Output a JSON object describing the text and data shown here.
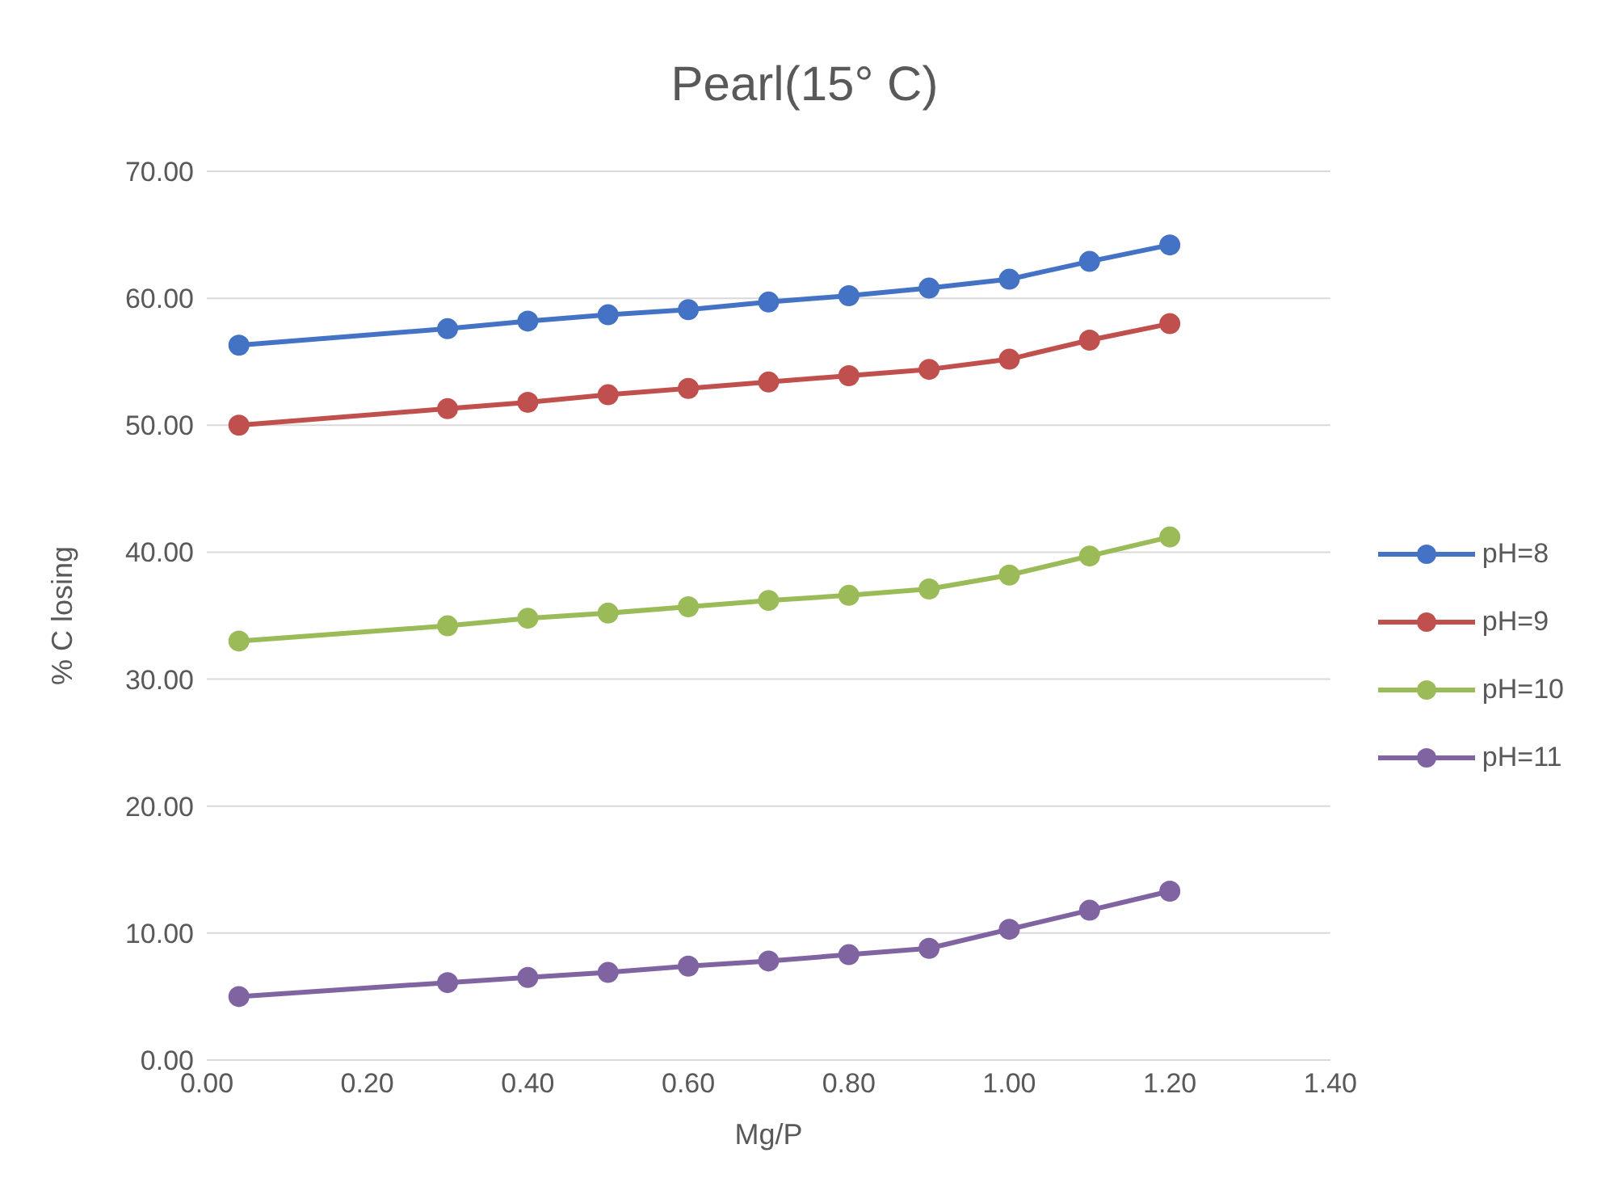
{
  "chart_data": {
    "type": "line",
    "title": "Pearl(15° C)",
    "xlabel": "Mg/P",
    "ylabel": "% C losing",
    "x": [
      0.04,
      0.3,
      0.4,
      0.5,
      0.6,
      0.7,
      0.8,
      0.9,
      1.0,
      1.1,
      1.2
    ],
    "series": [
      {
        "name": "pH=8",
        "color": "#4472c4",
        "values": [
          56.3,
          57.6,
          58.2,
          58.7,
          59.1,
          59.7,
          60.2,
          60.8,
          61.5,
          62.9,
          64.2
        ]
      },
      {
        "name": "pH=9",
        "color": "#c0504d",
        "values": [
          50.0,
          51.3,
          51.8,
          52.4,
          52.9,
          53.4,
          53.9,
          54.4,
          55.2,
          56.7,
          58.0
        ]
      },
      {
        "name": "pH=10",
        "color": "#9bbb59",
        "values": [
          33.0,
          34.2,
          34.8,
          35.2,
          35.7,
          36.2,
          36.6,
          37.1,
          38.2,
          39.7,
          41.2
        ]
      },
      {
        "name": "pH=11",
        "color": "#8064a2",
        "values": [
          5.0,
          6.1,
          6.5,
          6.9,
          7.4,
          7.8,
          8.3,
          8.8,
          10.3,
          11.8,
          13.3
        ]
      }
    ],
    "xlim": [
      0,
      1.4
    ],
    "xticks": [
      {
        "value": 0,
        "label": "0.00"
      },
      {
        "value": 0.2,
        "label": "0.20"
      },
      {
        "value": 0.4,
        "label": "0.40"
      },
      {
        "value": 0.6,
        "label": "0.60"
      },
      {
        "value": 0.8,
        "label": "0.80"
      },
      {
        "value": 1.0,
        "label": "1.00"
      },
      {
        "value": 1.2,
        "label": "1.20"
      },
      {
        "value": 1.4,
        "label": "1.40"
      }
    ],
    "ylim": [
      0,
      70
    ],
    "yticks": [
      {
        "value": 0,
        "label": "0.00"
      },
      {
        "value": 10,
        "label": "10.00"
      },
      {
        "value": 20,
        "label": "20.00"
      },
      {
        "value": 30,
        "label": "30.00"
      },
      {
        "value": 40,
        "label": "40.00"
      },
      {
        "value": 50,
        "label": "50.00"
      },
      {
        "value": 60,
        "label": "60.00"
      },
      {
        "value": 70,
        "label": "70.00"
      }
    ],
    "grid": "y",
    "legend": "right",
    "marker": "circle",
    "line_style": "solid"
  }
}
